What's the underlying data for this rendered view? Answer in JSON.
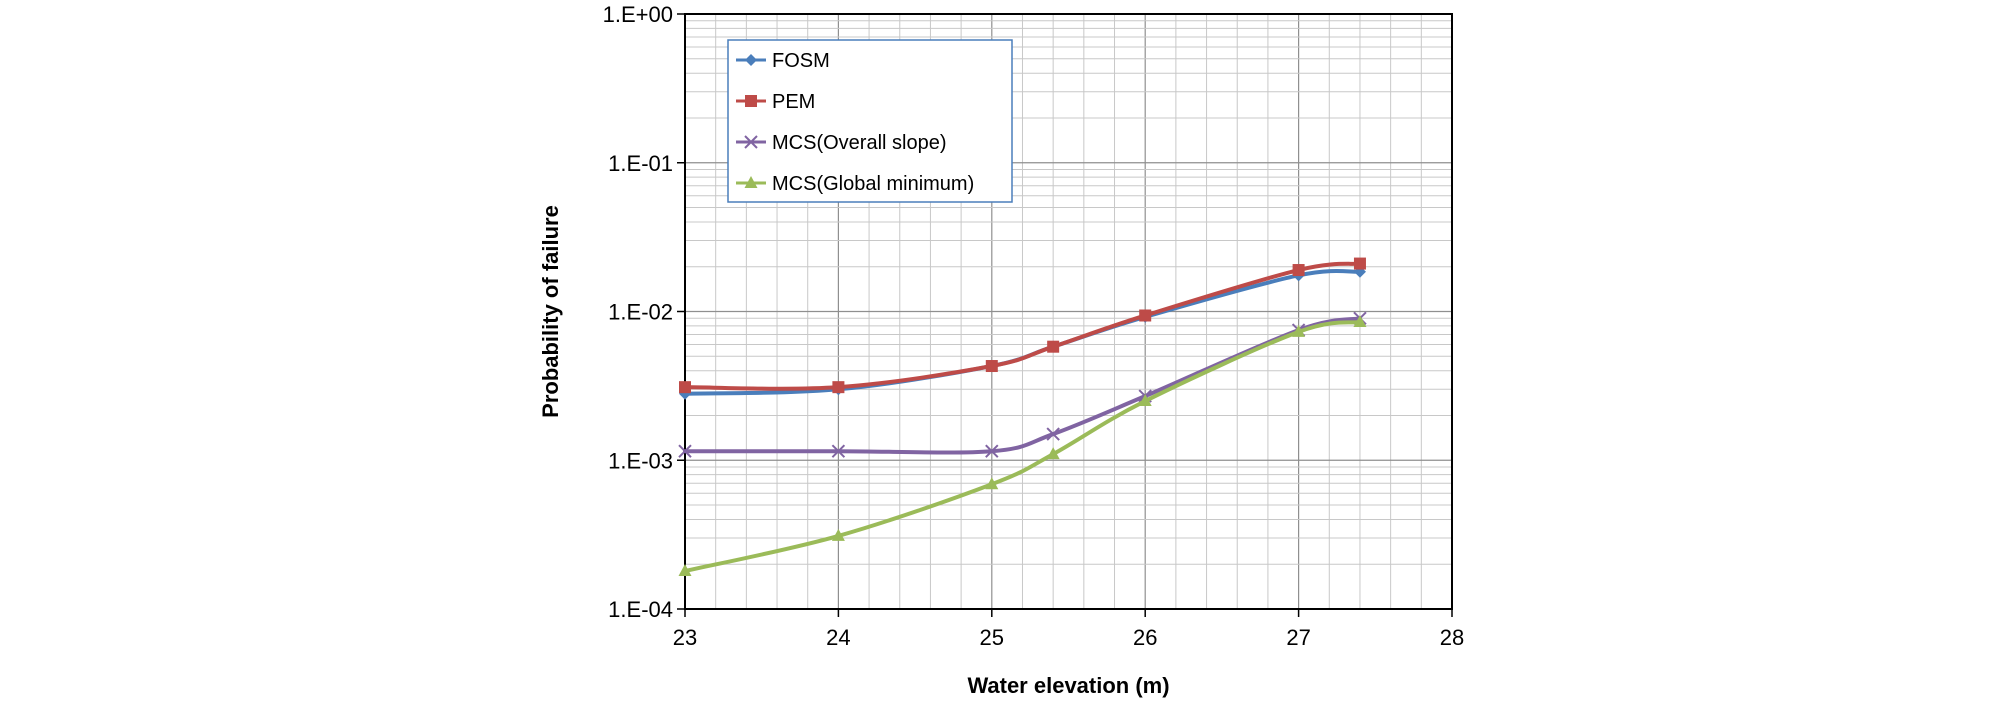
{
  "chart_data": {
    "type": "line",
    "xlabel": "Water elevation (m)",
    "ylabel": "Probability of failure",
    "xlim": [
      23,
      28
    ],
    "ylim": [
      0.0001,
      1
    ],
    "yscale": "log",
    "x_ticks": [
      "23",
      "24",
      "25",
      "26",
      "27",
      "28"
    ],
    "y_ticks": [
      "1.E-04",
      "1.E-03",
      "1.E-02",
      "1.E-01",
      "1.E+00"
    ],
    "grid": true,
    "legend_position": "top-left",
    "series": [
      {
        "name": "FOSM",
        "color": "#4a7ebb",
        "marker": "diamond",
        "x": [
          23,
          24,
          25,
          25.4,
          26,
          27,
          27.4
        ],
        "y": [
          0.0028,
          0.003,
          0.0043,
          0.0058,
          0.0092,
          0.0175,
          0.0185
        ]
      },
      {
        "name": "PEM",
        "color": "#be4b48",
        "marker": "square",
        "x": [
          23,
          24,
          25,
          25.4,
          26,
          27,
          27.4
        ],
        "y": [
          0.0031,
          0.0031,
          0.0043,
          0.0058,
          0.0094,
          0.019,
          0.021
        ]
      },
      {
        "name": "MCS(Overall slope)",
        "color": "#8064a2",
        "marker": "x",
        "x": [
          23,
          24,
          25,
          25.4,
          26,
          27,
          27.4
        ],
        "y": [
          0.00115,
          0.00115,
          0.00115,
          0.0015,
          0.0027,
          0.0075,
          0.009
        ]
      },
      {
        "name": "MCS(Global minimum)",
        "color": "#9bbb59",
        "marker": "triangle",
        "x": [
          23,
          24,
          25,
          25.4,
          26,
          27,
          27.4
        ],
        "y": [
          0.00018,
          0.00031,
          0.00069,
          0.0011,
          0.0025,
          0.0073,
          0.0085
        ]
      }
    ]
  }
}
